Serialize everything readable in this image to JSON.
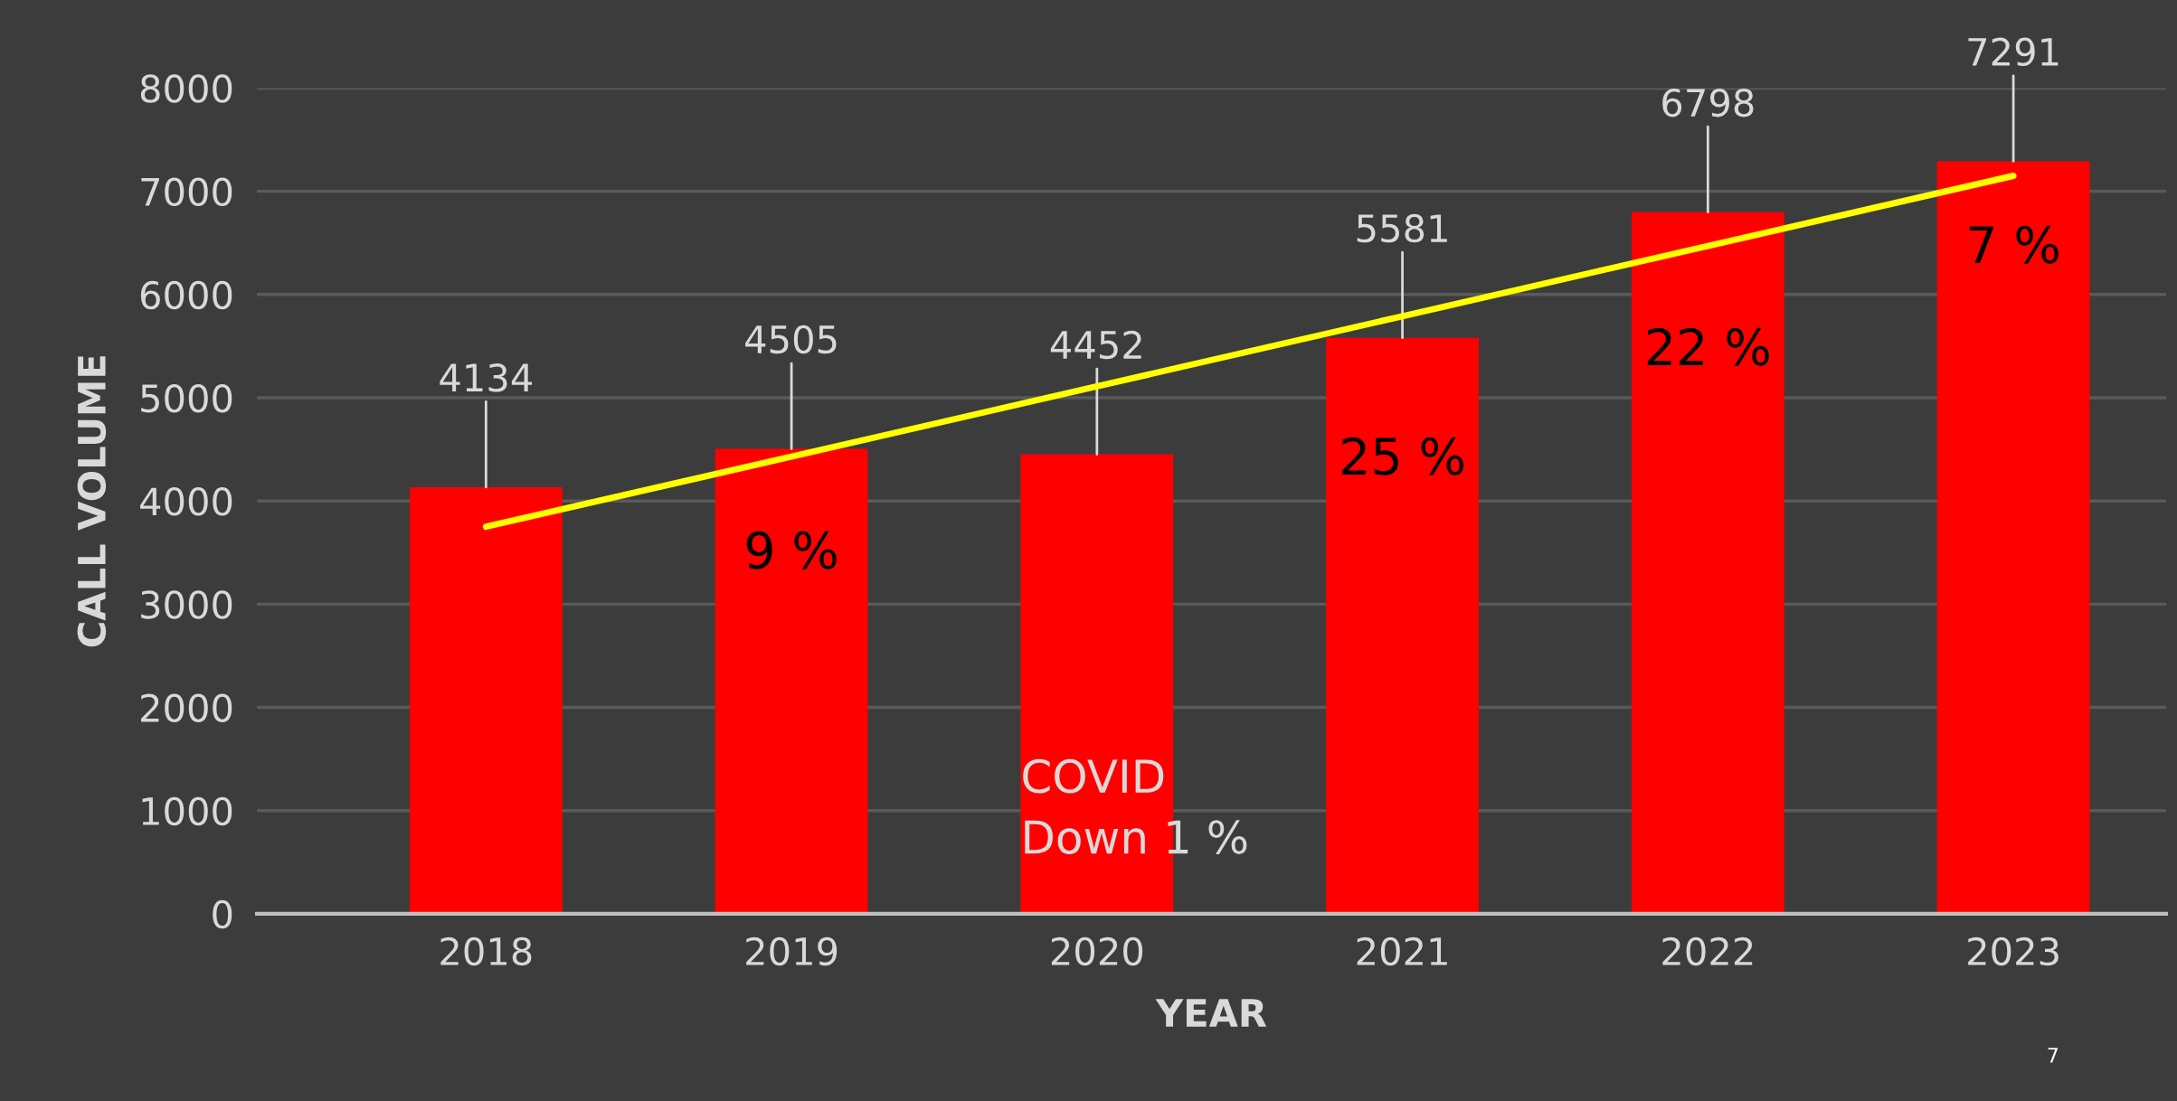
{
  "chart_data": {
    "type": "bar",
    "xlabel": "YEAR",
    "ylabel": "CALL VOLUME",
    "categories": [
      "2018",
      "2019",
      "2020",
      "2021",
      "2022",
      "2023"
    ],
    "series": [
      {
        "color": "#ff0000",
        "values": [
          4134,
          4505,
          4452,
          5581,
          6798,
          7291
        ],
        "value_labels": [
          "4134",
          "4505",
          "4452",
          "5581",
          "6798",
          "7291"
        ]
      },
      {
        "type": "line",
        "color": "#ffff00",
        "values": [
          3750,
          4430,
          5110,
          5790,
          6470,
          7150
        ]
      }
    ],
    "ylim": [
      0,
      8000
    ],
    "yticks": [
      0,
      1000,
      2000,
      3000,
      4000,
      5000,
      6000,
      7000,
      8000
    ],
    "grid": "y",
    "annotations": [
      "9 %",
      "COVID\nDown 1 %",
      "25 %",
      "22 %",
      "7 %",
      "7"
    ]
  }
}
